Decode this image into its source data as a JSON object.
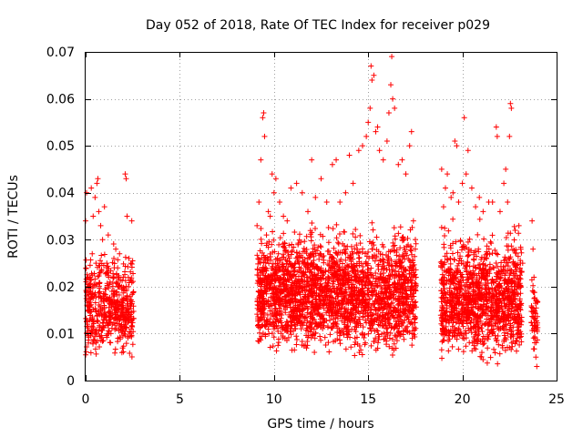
{
  "chart_data": {
    "type": "scatter",
    "title": "Day 052 of 2018, Rate Of TEC Index for receiver p029",
    "xlabel": "GPS time / hours",
    "ylabel": "ROTI / TECUs",
    "xlim": [
      0,
      25
    ],
    "ylim": [
      0,
      0.07
    ],
    "xticks": [
      0,
      5,
      10,
      15,
      20,
      25
    ],
    "xtick_labels": [
      "0",
      "5",
      "10",
      "15",
      "20",
      "25"
    ],
    "yticks": [
      0,
      0.01,
      0.02,
      0.03,
      0.04,
      0.05,
      0.06,
      0.07
    ],
    "ytick_labels": [
      "0",
      "0.01",
      "0.02",
      "0.03",
      "0.04",
      "0.05",
      "0.06",
      "0.07"
    ],
    "grid": true,
    "marker": "+",
    "color": "#ff0000",
    "series": [
      {
        "name": "ROTI",
        "points": [
          [
            0.0,
            0.034
          ],
          [
            0.05,
            0.04
          ],
          [
            0.1,
            0.012
          ],
          [
            0.15,
            0.008
          ],
          [
            0.2,
            0.015
          ],
          [
            0.25,
            0.022
          ],
          [
            0.3,
            0.041
          ],
          [
            0.35,
            0.027
          ],
          [
            0.4,
            0.035
          ],
          [
            0.45,
            0.018
          ],
          [
            0.5,
            0.039
          ],
          [
            0.55,
            0.025
          ],
          [
            0.6,
            0.042
          ],
          [
            0.65,
            0.043
          ],
          [
            0.7,
            0.036
          ],
          [
            0.8,
            0.033
          ],
          [
            0.9,
            0.03
          ],
          [
            1.0,
            0.037
          ],
          [
            1.1,
            0.023
          ],
          [
            1.2,
            0.031
          ],
          [
            1.3,
            0.021
          ],
          [
            1.4,
            0.019
          ],
          [
            1.5,
            0.026
          ],
          [
            1.6,
            0.028
          ],
          [
            1.7,
            0.024
          ],
          [
            1.8,
            0.027
          ],
          [
            1.9,
            0.02
          ],
          [
            2.0,
            0.022
          ],
          [
            2.1,
            0.044
          ],
          [
            2.15,
            0.043
          ],
          [
            2.2,
            0.035
          ],
          [
            2.3,
            0.026
          ],
          [
            2.4,
            0.025
          ],
          [
            2.45,
            0.034
          ],
          [
            9.1,
            0.033
          ],
          [
            9.2,
            0.038
          ],
          [
            9.3,
            0.047
          ],
          [
            9.4,
            0.056
          ],
          [
            9.45,
            0.057
          ],
          [
            9.5,
            0.052
          ],
          [
            9.6,
            0.031
          ],
          [
            9.7,
            0.036
          ],
          [
            9.8,
            0.035
          ],
          [
            9.9,
            0.044
          ],
          [
            10.0,
            0.04
          ],
          [
            10.1,
            0.043
          ],
          [
            10.3,
            0.038
          ],
          [
            10.5,
            0.035
          ],
          [
            10.7,
            0.034
          ],
          [
            10.9,
            0.041
          ],
          [
            11.2,
            0.042
          ],
          [
            11.5,
            0.04
          ],
          [
            11.8,
            0.036
          ],
          [
            12.0,
            0.047
          ],
          [
            12.2,
            0.039
          ],
          [
            12.5,
            0.043
          ],
          [
            12.8,
            0.038
          ],
          [
            13.1,
            0.046
          ],
          [
            13.3,
            0.047
          ],
          [
            13.5,
            0.038
          ],
          [
            13.8,
            0.04
          ],
          [
            14.0,
            0.048
          ],
          [
            14.2,
            0.042
          ],
          [
            14.5,
            0.049
          ],
          [
            14.7,
            0.05
          ],
          [
            14.9,
            0.052
          ],
          [
            15.0,
            0.055
          ],
          [
            15.1,
            0.058
          ],
          [
            15.15,
            0.067
          ],
          [
            15.2,
            0.064
          ],
          [
            15.3,
            0.065
          ],
          [
            15.4,
            0.053
          ],
          [
            15.5,
            0.054
          ],
          [
            15.6,
            0.049
          ],
          [
            15.8,
            0.047
          ],
          [
            16.0,
            0.051
          ],
          [
            16.1,
            0.057
          ],
          [
            16.2,
            0.063
          ],
          [
            16.25,
            0.069
          ],
          [
            16.3,
            0.06
          ],
          [
            16.4,
            0.058
          ],
          [
            16.6,
            0.046
          ],
          [
            16.8,
            0.047
          ],
          [
            17.0,
            0.044
          ],
          [
            17.2,
            0.05
          ],
          [
            17.3,
            0.053
          ],
          [
            17.4,
            0.034
          ],
          [
            17.5,
            0.028
          ],
          [
            18.9,
            0.045
          ],
          [
            19.0,
            0.037
          ],
          [
            19.1,
            0.041
          ],
          [
            19.2,
            0.044
          ],
          [
            19.4,
            0.039
          ],
          [
            19.5,
            0.04
          ],
          [
            19.6,
            0.051
          ],
          [
            19.7,
            0.05
          ],
          [
            19.8,
            0.038
          ],
          [
            20.0,
            0.042
          ],
          [
            20.1,
            0.056
          ],
          [
            20.2,
            0.044
          ],
          [
            20.3,
            0.049
          ],
          [
            20.5,
            0.041
          ],
          [
            20.7,
            0.037
          ],
          [
            20.9,
            0.039
          ],
          [
            21.1,
            0.036
          ],
          [
            21.4,
            0.038
          ],
          [
            21.6,
            0.038
          ],
          [
            21.8,
            0.054
          ],
          [
            21.85,
            0.052
          ],
          [
            22.0,
            0.036
          ],
          [
            22.2,
            0.042
          ],
          [
            22.3,
            0.045
          ],
          [
            22.4,
            0.038
          ],
          [
            22.5,
            0.052
          ],
          [
            22.55,
            0.059
          ],
          [
            22.6,
            0.058
          ],
          [
            22.8,
            0.032
          ],
          [
            23.0,
            0.033
          ],
          [
            23.1,
            0.028
          ],
          [
            23.2,
            0.025
          ],
          [
            23.7,
            0.034
          ],
          [
            23.75,
            0.028
          ],
          [
            23.8,
            0.022
          ],
          [
            23.85,
            0.009
          ],
          [
            23.9,
            0.005
          ],
          [
            23.95,
            0.003
          ]
        ],
        "dense_bands": [
          {
            "x": [
              0.0,
              2.55
            ],
            "y": [
              0.004,
              0.03
            ],
            "count": 520
          },
          {
            "x": [
              9.1,
              17.55
            ],
            "y": [
              0.004,
              0.036
            ],
            "count": 2400
          },
          {
            "x": [
              18.85,
              23.15
            ],
            "y": [
              0.003,
              0.035
            ],
            "count": 1250
          },
          {
            "x": [
              23.65,
              24.0
            ],
            "y": [
              0.005,
              0.025
            ],
            "count": 60
          }
        ]
      }
    ]
  }
}
